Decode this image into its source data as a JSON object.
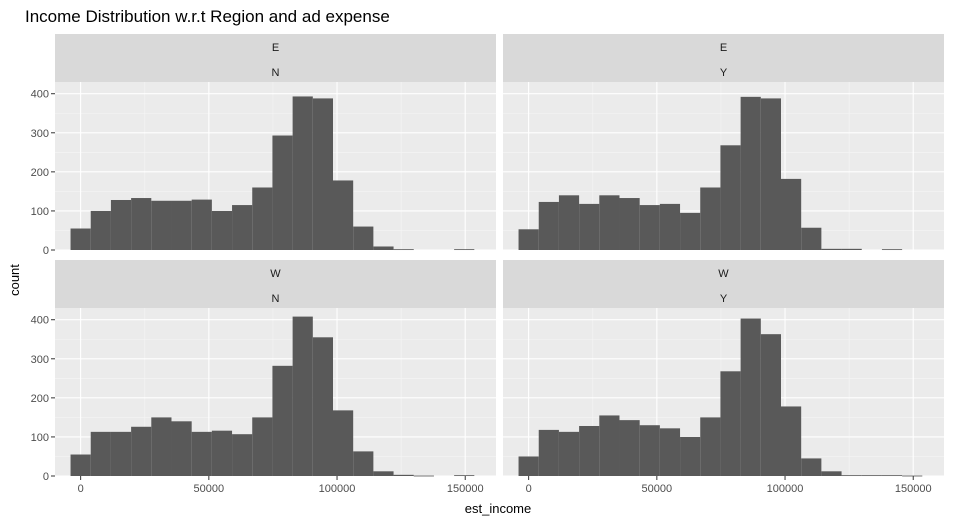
{
  "chart_data": {
    "type": "bar",
    "title": "Income Distribution w.r.t Region and ad expense",
    "xlabel": "est_income",
    "ylabel": "count",
    "xlim": [
      -10000,
      162000
    ],
    "ylim": [
      0,
      430
    ],
    "x_ticks": [
      0,
      50000,
      100000,
      150000
    ],
    "x_tick_labels": [
      "0",
      "50000",
      "100000",
      "150000"
    ],
    "y_ticks": [
      0,
      100,
      200,
      300,
      400
    ],
    "y_tick_labels": [
      "0",
      "100",
      "200",
      "300",
      "400"
    ],
    "bin_width": 7874,
    "bin_start": -3937,
    "grid": true,
    "bar_color": "#595959",
    "panel_background": "#ebebeb",
    "strip_background": "#d9d9d9",
    "panels": [
      {
        "strip_top": "E",
        "strip_bottom": "N",
        "values": [
          55,
          100,
          128,
          133,
          126,
          126,
          129,
          100,
          115,
          160,
          293,
          393,
          388,
          178,
          60,
          9,
          2,
          0,
          0,
          2
        ]
      },
      {
        "strip_top": "E",
        "strip_bottom": "Y",
        "values": [
          53,
          123,
          140,
          118,
          140,
          133,
          115,
          118,
          95,
          160,
          268,
          392,
          388,
          182,
          57,
          3,
          3,
          0,
          2,
          0
        ]
      },
      {
        "strip_top": "W",
        "strip_bottom": "N",
        "values": [
          55,
          113,
          113,
          126,
          150,
          140,
          113,
          116,
          107,
          150,
          282,
          408,
          355,
          168,
          63,
          12,
          3,
          1,
          0,
          2
        ]
      },
      {
        "strip_top": "W",
        "strip_bottom": "Y",
        "values": [
          50,
          118,
          113,
          128,
          155,
          143,
          130,
          122,
          100,
          150,
          268,
          403,
          363,
          178,
          45,
          12,
          2,
          2,
          2,
          1
        ]
      }
    ]
  }
}
